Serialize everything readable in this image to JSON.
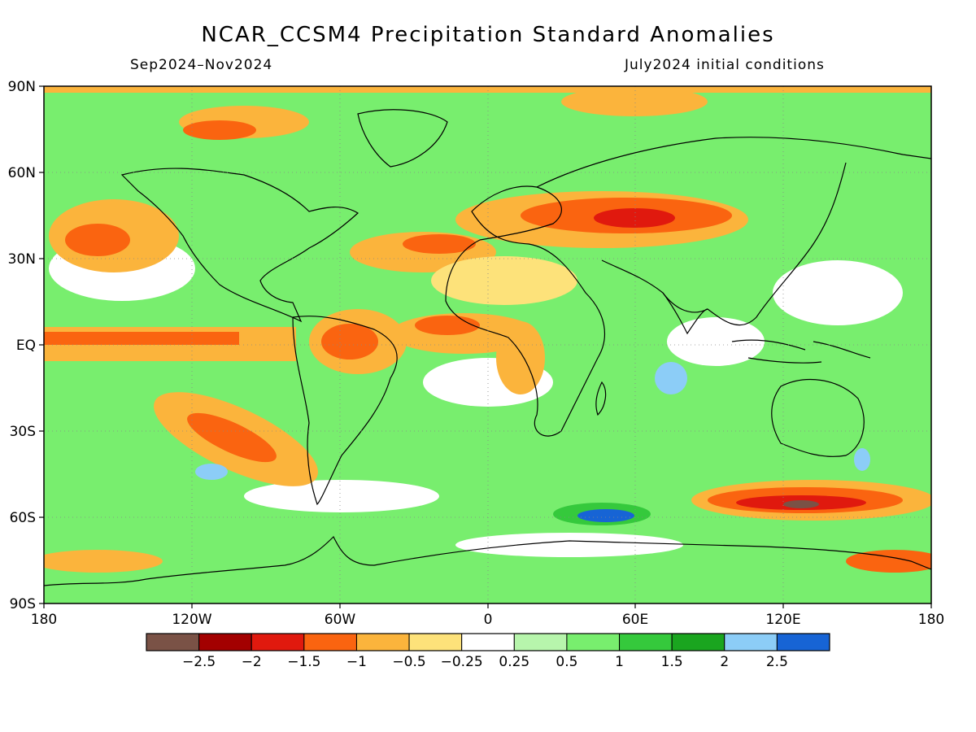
{
  "title": "NCAR_CCSM4 Precipitation Standard Anomalies",
  "subtitle_left": "Sep2024–Nov2024",
  "subtitle_right": "July2024 initial conditions",
  "lat_labels": [
    "90N",
    "60N",
    "30N",
    "EQ",
    "30S",
    "60S",
    "90S"
  ],
  "lon_labels": [
    "180",
    "120W",
    "60W",
    "0",
    "60E",
    "120E",
    "180"
  ],
  "colorbar": {
    "colors": [
      "#7a5246",
      "#a30000",
      "#e0190e",
      "#fa6410",
      "#fbb43c",
      "#fde27a",
      "#ffffff",
      "#b7f5ac",
      "#78ee6e",
      "#35c93c",
      "#1aa51f",
      "#8ccdf7",
      "#1764d5"
    ],
    "labels": [
      "−2.5",
      "−2",
      "−1.5",
      "−1",
      "−0.5",
      "−0.25",
      "0.25",
      "0.5",
      "1",
      "1.5",
      "2",
      "2.5"
    ]
  }
}
